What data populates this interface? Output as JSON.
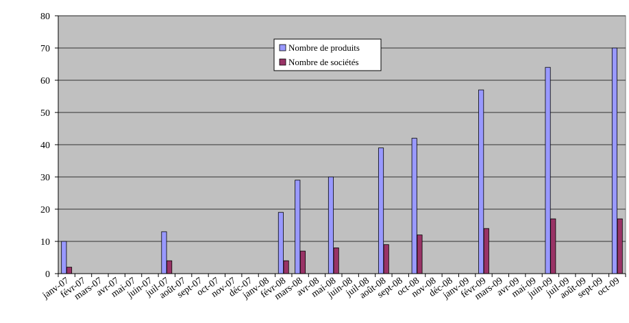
{
  "chart_data": {
    "type": "bar",
    "categories": [
      "janv-07",
      "févr-07",
      "mars-07",
      "avr-07",
      "mai-07",
      "juin-07",
      "juil-07",
      "août-07",
      "sept-07",
      "oct-07",
      "nov-07",
      "déc-07",
      "janv-08",
      "févr-08",
      "mars-08",
      "avr-08",
      "mai-08",
      "juin-08",
      "juil-08",
      "août-08",
      "sept-08",
      "oct-08",
      "nov-08",
      "déc-08",
      "janv-09",
      "févr-09",
      "mars-09",
      "avr-09",
      "mai-09",
      "juin-09",
      "juil-09",
      "août-09",
      "sept-09",
      "oct-09"
    ],
    "series": [
      {
        "name": "Nombre de produits",
        "color": "#9999FF",
        "values": [
          10,
          null,
          null,
          null,
          null,
          null,
          13,
          null,
          null,
          null,
          null,
          null,
          null,
          19,
          29,
          null,
          30,
          null,
          null,
          39,
          null,
          42,
          null,
          null,
          null,
          57,
          null,
          null,
          null,
          64,
          null,
          null,
          null,
          70
        ]
      },
      {
        "name": "Nombre de sociétés",
        "color": "#993366",
        "values": [
          2,
          null,
          null,
          null,
          null,
          null,
          4,
          null,
          null,
          null,
          null,
          null,
          null,
          4,
          7,
          null,
          8,
          null,
          null,
          9,
          null,
          12,
          null,
          null,
          null,
          14,
          null,
          null,
          null,
          17,
          null,
          null,
          null,
          17
        ]
      }
    ],
    "ylim": [
      0,
      80
    ],
    "yticks": [
      0,
      10,
      20,
      30,
      40,
      50,
      60,
      70,
      80
    ],
    "grid": true,
    "legend_position": "top-center",
    "plot_background": "#C0C0C0"
  }
}
